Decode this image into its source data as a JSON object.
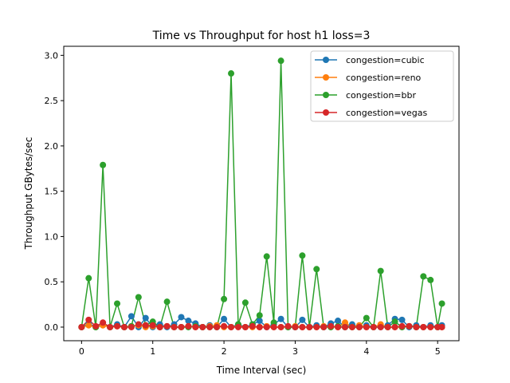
{
  "chart_data": {
    "type": "line",
    "title": "Time vs Throughput for host h1 loss=3",
    "xlabel": "Time Interval (sec)",
    "ylabel": "Throughput GBytes/sec",
    "xlim": [
      -0.25,
      5.3
    ],
    "ylim": [
      -0.15,
      3.1
    ],
    "xticks": [
      0,
      1,
      2,
      3,
      4,
      5
    ],
    "yticks": [
      0.0,
      0.5,
      1.0,
      1.5,
      2.0,
      2.5,
      3.0
    ],
    "xtick_labels": [
      "0",
      "1",
      "2",
      "3",
      "4",
      "5"
    ],
    "ytick_labels": [
      "0.0",
      "0.5",
      "1.0",
      "1.5",
      "2.0",
      "2.5",
      "3.0"
    ],
    "grid": false,
    "legend_position": "top-right",
    "x": [
      0,
      0.1,
      0.2,
      0.3,
      0.4,
      0.5,
      0.6,
      0.7,
      0.8,
      0.9,
      1.0,
      1.1,
      1.2,
      1.3,
      1.4,
      1.5,
      1.6,
      1.7,
      1.8,
      1.9,
      2.0,
      2.1,
      2.2,
      2.3,
      2.4,
      2.5,
      2.6,
      2.7,
      2.8,
      2.9,
      3.0,
      3.1,
      3.2,
      3.3,
      3.4,
      3.5,
      3.6,
      3.7,
      3.8,
      3.9,
      4.0,
      4.1,
      4.2,
      4.3,
      4.4,
      4.5,
      4.6,
      4.7,
      4.8,
      4.9,
      5.0,
      5.06
    ],
    "series": [
      {
        "name": "congestion=cubic",
        "color": "#1f77b4",
        "values": [
          0.0,
          0.04,
          0.0,
          0.03,
          0.0,
          0.03,
          0.0,
          0.12,
          0.0,
          0.1,
          0.0,
          0.03,
          0.0,
          0.03,
          0.11,
          0.07,
          0.04,
          0.0,
          0.02,
          0.0,
          0.09,
          0.0,
          0.03,
          0.0,
          0.03,
          0.07,
          0.0,
          0.03,
          0.09,
          0.0,
          0.0,
          0.08,
          0.0,
          0.02,
          0.0,
          0.04,
          0.07,
          0.0,
          0.03,
          0.0,
          0.02,
          0.0,
          0.0,
          0.02,
          0.09,
          0.08,
          0.0,
          0.02,
          0.0,
          0.02,
          0.0,
          0.02
        ]
      },
      {
        "name": "congestion=reno",
        "color": "#ff7f0e",
        "values": [
          0.0,
          0.02,
          0.0,
          0.02,
          0.0,
          0.01,
          0.0,
          0.01,
          0.02,
          0.0,
          0.01,
          0.0,
          0.01,
          0.0,
          0.0,
          0.01,
          0.0,
          0.0,
          0.01,
          0.02,
          0.0,
          0.0,
          0.01,
          0.0,
          0.0,
          0.0,
          0.01,
          0.0,
          0.0,
          0.0,
          0.01,
          0.0,
          0.0,
          0.0,
          0.01,
          0.0,
          0.0,
          0.05,
          0.0,
          0.02,
          0.0,
          0.0,
          0.03,
          0.0,
          0.0,
          0.0,
          0.01,
          0.0,
          0.0,
          0.0,
          0.0,
          0.0
        ]
      },
      {
        "name": "congestion=bbr",
        "color": "#2ca02c",
        "values": [
          0.0,
          0.54,
          0.0,
          1.79,
          0.0,
          0.26,
          0.0,
          0.01,
          0.33,
          0.02,
          0.06,
          0.0,
          0.28,
          0.0,
          0.0,
          0.0,
          0.01,
          0.0,
          0.0,
          0.0,
          0.31,
          2.8,
          0.03,
          0.27,
          0.03,
          0.13,
          0.78,
          0.05,
          2.94,
          0.0,
          0.0,
          0.79,
          0.0,
          0.64,
          0.0,
          0.0,
          0.01,
          0.0,
          0.0,
          0.0,
          0.1,
          0.0,
          0.62,
          0.0,
          0.06,
          0.0,
          0.01,
          0.0,
          0.56,
          0.52,
          0.0,
          0.26
        ]
      },
      {
        "name": "congestion=vegas",
        "color": "#d62728",
        "values": [
          0.0,
          0.08,
          0.01,
          0.05,
          0.0,
          0.01,
          0.0,
          0.0,
          0.03,
          0.02,
          0.02,
          0.0,
          0.01,
          0.0,
          0.0,
          0.01,
          0.0,
          0.0,
          0.0,
          0.0,
          0.01,
          0.0,
          0.0,
          0.0,
          0.01,
          0.0,
          0.0,
          0.0,
          0.0,
          0.01,
          0.0,
          0.0,
          0.0,
          0.0,
          0.0,
          0.01,
          0.0,
          0.0,
          0.0,
          0.0,
          0.0,
          0.0,
          0.0,
          0.0,
          0.0,
          0.01,
          0.01,
          0.0,
          0.0,
          0.0,
          0.0,
          0.0
        ]
      }
    ]
  }
}
